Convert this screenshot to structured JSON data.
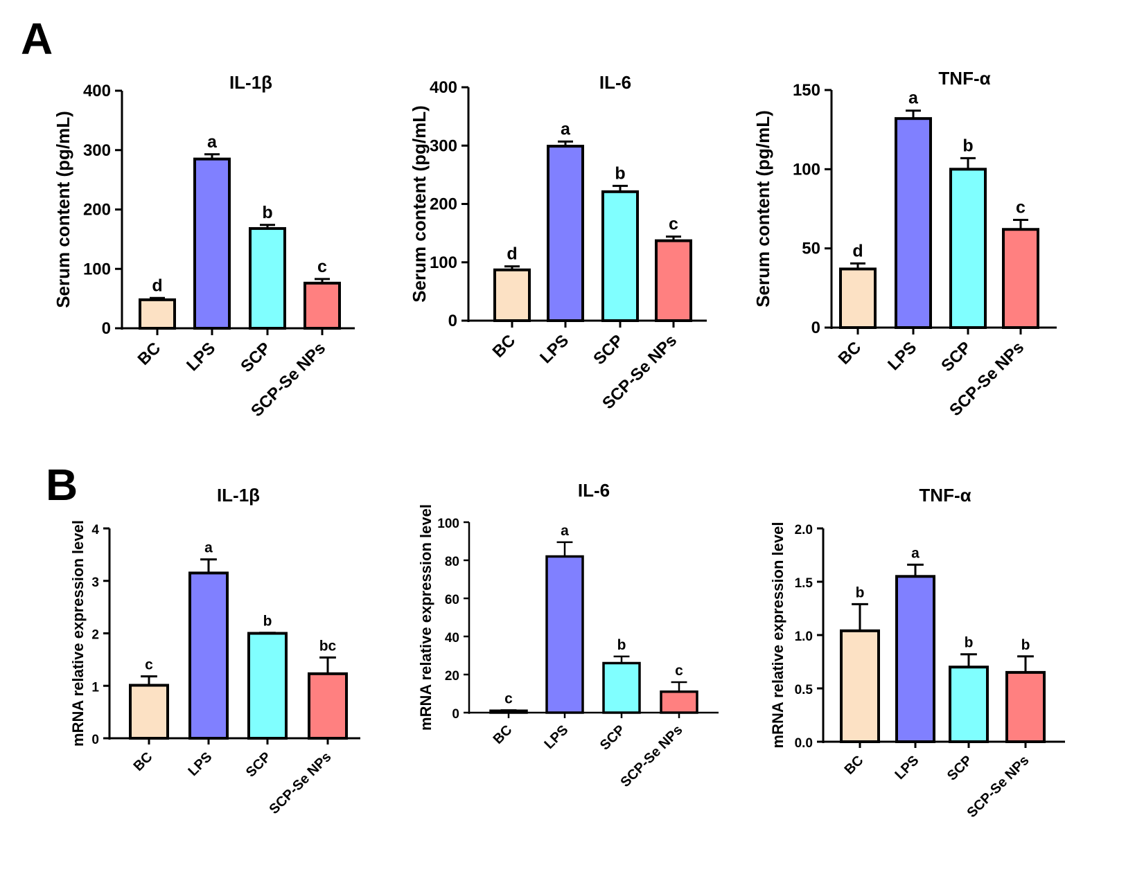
{
  "figure": {
    "panel_labels": [
      "A",
      "B"
    ]
  },
  "colors": {
    "BC": "#FCE1C4",
    "LPS": "#8080FF",
    "SCP": "#80FFFF",
    "SCP-Se NPs": "#FF8080",
    "stroke": "#000000"
  },
  "chart_data": [
    {
      "panel": "A",
      "type": "bar",
      "title": "IL-1β",
      "ylabel": "Serum content (pg/mL)",
      "xlabel": "",
      "categories": [
        "BC",
        "LPS",
        "SCP",
        "SCP-Se NPs"
      ],
      "values": [
        48,
        285,
        168,
        76
      ],
      "errors": [
        3,
        8,
        6,
        7
      ],
      "significance": [
        "d",
        "a",
        "b",
        "c"
      ],
      "ylim": [
        0,
        400
      ],
      "yticks": [
        "0",
        "100",
        "200",
        "300",
        "400"
      ],
      "grid": false
    },
    {
      "panel": "A",
      "type": "bar",
      "title": "IL-6",
      "ylabel": "Serum content (pg/mL)",
      "xlabel": "",
      "categories": [
        "BC",
        "LPS",
        "SCP",
        "SCP-Se NPs"
      ],
      "values": [
        87,
        299,
        221,
        137
      ],
      "errors": [
        6,
        8,
        10,
        7
      ],
      "significance": [
        "d",
        "a",
        "b",
        "c"
      ],
      "ylim": [
        0,
        400
      ],
      "yticks": [
        "0",
        "100",
        "200",
        "300",
        "400"
      ],
      "grid": false
    },
    {
      "panel": "A",
      "type": "bar",
      "title": "TNF-α",
      "ylabel": "Serum content (pg/mL)",
      "xlabel": "",
      "categories": [
        "BC",
        "LPS",
        "SCP",
        "SCP-Se NPs"
      ],
      "values": [
        37,
        132,
        100,
        62
      ],
      "errors": [
        3.5,
        5,
        7,
        6
      ],
      "significance": [
        "d",
        "a",
        "b",
        "c"
      ],
      "ylim": [
        0,
        150
      ],
      "yticks": [
        "0",
        "50",
        "100",
        "150"
      ],
      "grid": false
    },
    {
      "panel": "B",
      "type": "bar",
      "title": "IL-1β",
      "ylabel": "mRNA relative expression level",
      "xlabel": "",
      "categories": [
        "BC",
        "LPS",
        "SCP",
        "SCP-Se NPs"
      ],
      "values": [
        1.01,
        3.15,
        2.0,
        1.23
      ],
      "errors": [
        0.17,
        0.26,
        0.01,
        0.31
      ],
      "significance": [
        "c",
        "a",
        "b",
        "bc"
      ],
      "ylim": [
        0,
        4
      ],
      "yticks": [
        "0",
        "1",
        "2",
        "3",
        "4"
      ],
      "grid": false
    },
    {
      "panel": "B",
      "type": "bar",
      "title": "IL-6",
      "ylabel": "mRNA relative expression level",
      "xlabel": "",
      "categories": [
        "BC",
        "LPS",
        "SCP",
        "SCP-Se NPs"
      ],
      "values": [
        1,
        82,
        26,
        11
      ],
      "errors": [
        0.3,
        7.5,
        3.5,
        5
      ],
      "significance": [
        "c",
        "a",
        "b",
        "c"
      ],
      "ylim": [
        0,
        100
      ],
      "yticks": [
        "0",
        "20",
        "40",
        "60",
        "80",
        "100"
      ],
      "grid": false
    },
    {
      "panel": "B",
      "type": "bar",
      "title": "TNF-α",
      "ylabel": "mRNA relative expression level",
      "xlabel": "",
      "categories": [
        "BC",
        "LPS",
        "SCP",
        "SCP-Se NPs"
      ],
      "values": [
        1.04,
        1.55,
        0.7,
        0.65
      ],
      "errors": [
        0.25,
        0.11,
        0.12,
        0.15
      ],
      "significance": [
        "b",
        "a",
        "b",
        "b"
      ],
      "ylim": [
        0,
        2.0
      ],
      "yticks": [
        "0.0",
        "0.5",
        "1.0",
        "1.5",
        "2.0"
      ],
      "grid": false
    }
  ]
}
